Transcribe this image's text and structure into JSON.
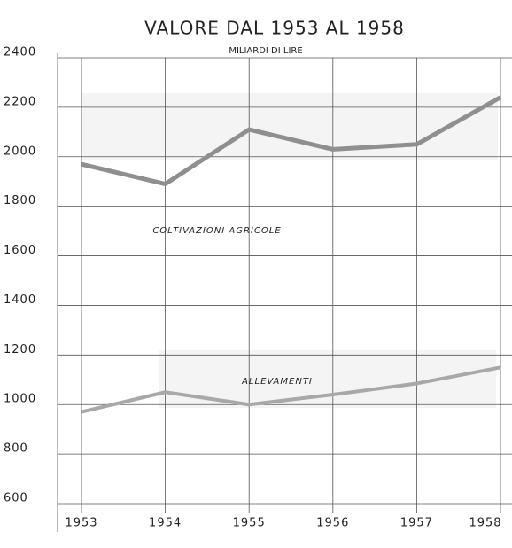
{
  "chart_data": {
    "type": "line",
    "title": "VALORE DAL 1953  AL 1958",
    "subtitle": "MILIARDI DI LIRE",
    "categories": [
      "1953",
      "1954",
      "1955",
      "1956",
      "1957",
      "1958"
    ],
    "series": [
      {
        "name": "COLTIVAZIONI  AGRICOLE",
        "color": "#8f8f8f",
        "values": [
          1970,
          1890,
          2110,
          2030,
          2050,
          2240
        ]
      },
      {
        "name": "ALLEVAMENTI",
        "color": "#a8a8a8",
        "values": [
          970,
          1050,
          1000,
          1040,
          1085,
          1150
        ]
      }
    ],
    "ylim": [
      600,
      2400
    ],
    "yticks": [
      600,
      800,
      1000,
      1200,
      1400,
      1600,
      1800,
      2000,
      2200,
      2400
    ],
    "grid": true
  }
}
